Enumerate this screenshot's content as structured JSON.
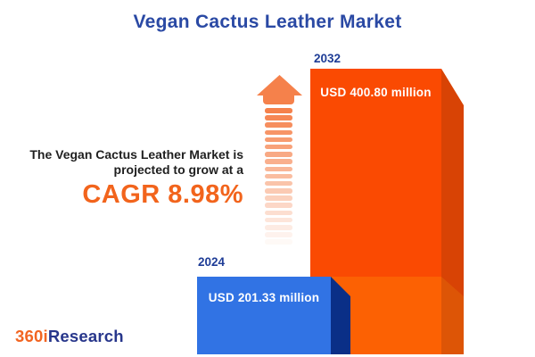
{
  "title": "Vegan Cactus Leather Market",
  "description": {
    "line1": "The Vegan Cactus Leather Market is",
    "line2": "projected to grow at a",
    "cagr": "CAGR 8.98%"
  },
  "chart_data": {
    "type": "bar",
    "title": "Vegan Cactus Leather Market",
    "categories": [
      "2024",
      "2032"
    ],
    "values": [
      201.33,
      400.8
    ],
    "unit": "USD million",
    "bars": [
      {
        "year": "2024",
        "value": 201.33,
        "value_label": "USD 201.33 million"
      },
      {
        "year": "2032",
        "value": 400.8,
        "value_label": "USD 400.80 million"
      }
    ],
    "cagr_percent": 8.98,
    "annotation": "The Vegan Cactus Leather Market is projected to grow at a CAGR 8.98%",
    "legend_position": "none",
    "grid": false
  },
  "logo": {
    "part1": "360i",
    "part2": "Research"
  },
  "icons": {
    "arrow": "growth-up-arrow-icon"
  },
  "colors": {
    "background": "#FFFFFF",
    "title_blue": "#2A49A4",
    "year_label_blue": "#1E3C96",
    "text_dark": "#1F1F1F",
    "accent_orange": "#F2641C",
    "arrow_salmon": "#F5814B",
    "bar_2024_front": "#3173E4",
    "bar_2024_side": "#0A2F87",
    "bar_2032_front_top": "#FA4A02",
    "bar_2032_front_bottom": "#FC6103",
    "bar_2032_side_top": "#D84305",
    "bar_2032_side_bottom": "#DD5506",
    "logo_orange": "#F26522",
    "logo_blue": "#27368B"
  }
}
